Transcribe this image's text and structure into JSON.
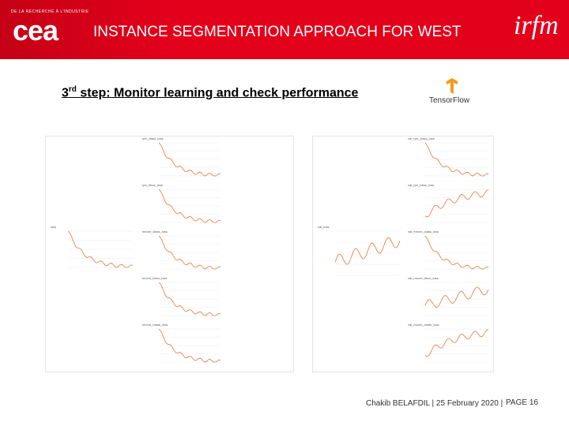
{
  "header": {
    "org_tagline": "DE LA RECHERCHE À L'INDUSTRIE",
    "logo": "cea",
    "title": "INSTANCE SEGMENTATION APPROACH FOR WEST",
    "partner_logo": "irfm"
  },
  "subtitle": {
    "ordinal": "3",
    "suffix": "rd",
    "text": " step: Monitor learning and check performance"
  },
  "tool_logo": "TensorFlow",
  "left_panel": {
    "main": "loss",
    "stack": [
      "rpn_class_loss",
      "rpn_bbox_loss",
      "mrcnn_class_loss",
      "mrcnn_bbox_loss",
      "mrcnn_mask_loss"
    ]
  },
  "right_panel": {
    "main": "val_loss",
    "stack": [
      "val_rpn_class_loss",
      "val_rpn_bbox_loss",
      "val_mrcnn_class_loss",
      "val_mrcnn_bbox_loss",
      "val_mrcnn_mask_loss"
    ]
  },
  "footer": {
    "author_date": "Chakib BELAFDIL | 25 February 2020 |",
    "page": "PAGE 16"
  }
}
